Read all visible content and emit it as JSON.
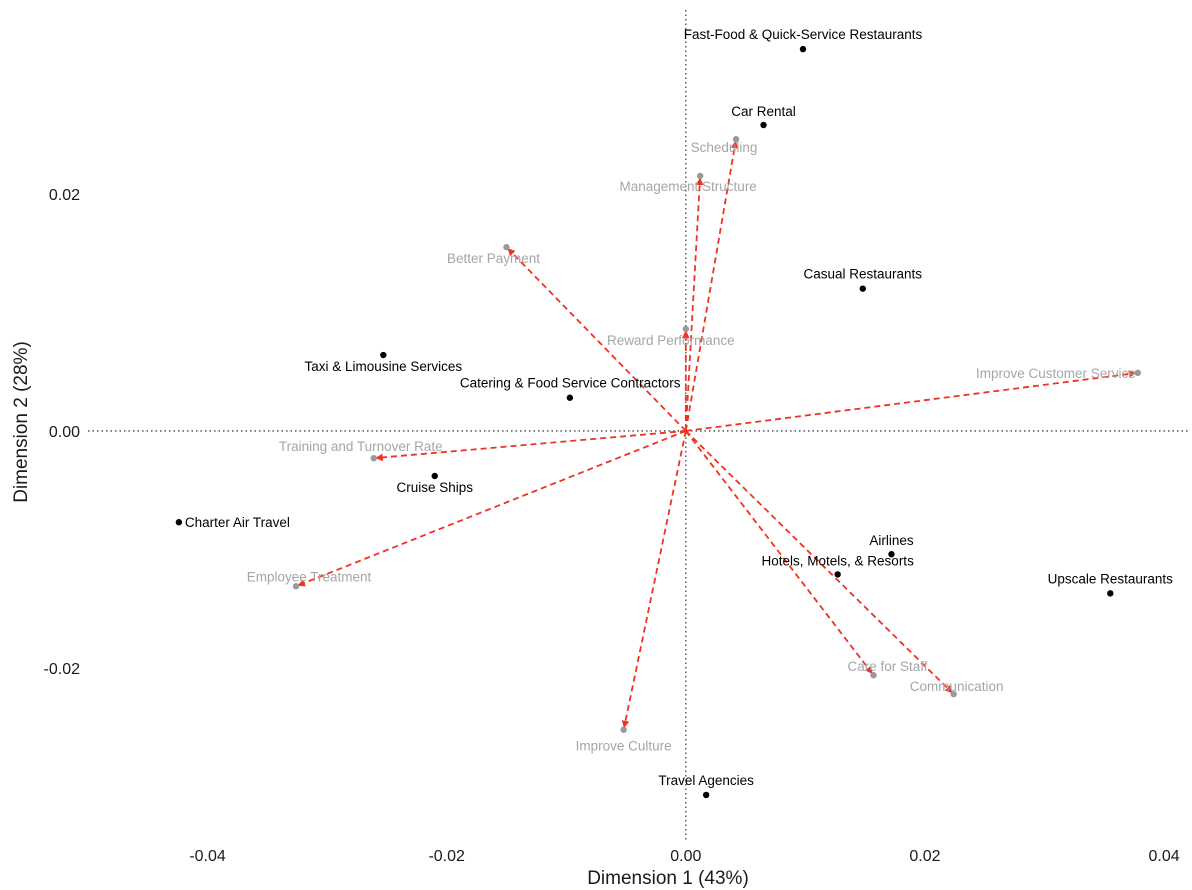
{
  "chart_data": {
    "type": "scatter",
    "xlabel": "Dimension 1 (43%)",
    "ylabel": "Dimension 2 (28%)",
    "xlim": [
      -0.05,
      0.042
    ],
    "ylim": [
      -0.0345,
      0.0355
    ],
    "xticks": [
      {
        "value": -0.04,
        "label": "-0.04"
      },
      {
        "value": -0.02,
        "label": "-0.02"
      },
      {
        "value": 0.0,
        "label": "0.00"
      },
      {
        "value": 0.02,
        "label": "0.02"
      },
      {
        "value": 0.04,
        "label": "0.04"
      }
    ],
    "yticks": [
      {
        "value": -0.02,
        "label": "-0.02"
      },
      {
        "value": 0.0,
        "label": "0.00"
      },
      {
        "value": 0.02,
        "label": "0.02"
      }
    ],
    "grid": false,
    "reference_lines": {
      "x": 0,
      "y": 0,
      "style": "dotted"
    },
    "row_points": [
      {
        "name": "Fast-Food & Quick-Service Restaurants",
        "x": 0.0098,
        "y": 0.0322,
        "anchor": "middle",
        "dy": -10
      },
      {
        "name": "Car Rental",
        "x": 0.0065,
        "y": 0.0258,
        "anchor": "middle",
        "dy": -9
      },
      {
        "name": "Casual Restaurants",
        "x": 0.0148,
        "y": 0.012,
        "anchor": "middle",
        "dy": -10
      },
      {
        "name": "Taxi & Limousine Services",
        "x": -0.0253,
        "y": 0.0064,
        "anchor": "middle",
        "dy": 16
      },
      {
        "name": "Catering & Food Service Contractors",
        "x": -0.0097,
        "y": 0.0028,
        "anchor": "start",
        "dx": -110,
        "dy": -10
      },
      {
        "name": "Cruise Ships",
        "x": -0.021,
        "y": -0.0038,
        "anchor": "middle",
        "dy": 16
      },
      {
        "name": "Charter Air Travel",
        "x": -0.0424,
        "y": -0.0077,
        "anchor": "start",
        "dx": 6,
        "dy": 5
      },
      {
        "name": "Airlines",
        "x": 0.0172,
        "y": -0.0104,
        "anchor": "middle",
        "dy": -9
      },
      {
        "name": "Hotels, Motels, & Resorts",
        "x": 0.0127,
        "y": -0.0121,
        "anchor": "middle",
        "dy": -9
      },
      {
        "name": "Upscale Restaurants",
        "x": 0.0355,
        "y": -0.0137,
        "anchor": "middle",
        "dy": -10
      },
      {
        "name": "Travel Agencies",
        "x": 0.0017,
        "y": -0.0307,
        "anchor": "middle",
        "dy": -10
      }
    ],
    "column_arrows": [
      {
        "name": "Scheduling",
        "x": 0.0042,
        "y": 0.0246,
        "anchor": "middle",
        "dx": -12,
        "dy": 13
      },
      {
        "name": "Management Structure",
        "x": 0.0012,
        "y": 0.0215,
        "anchor": "middle",
        "dx": -12,
        "dy": 15
      },
      {
        "name": "Better Payment",
        "x": -0.015,
        "y": 0.0155,
        "anchor": "middle",
        "dx": -13,
        "dy": 16
      },
      {
        "name": "Reward Performance",
        "x": 0.0,
        "y": 0.0086,
        "anchor": "middle",
        "dx": -15,
        "dy": 16
      },
      {
        "name": "Improve Customer Service",
        "x": 0.0378,
        "y": 0.0049,
        "anchor": "end",
        "dx": -2,
        "dy": 5
      },
      {
        "name": "Training and Turnover Rate",
        "x": -0.0261,
        "y": -0.0023,
        "anchor": "middle",
        "dx": -13,
        "dy": -7
      },
      {
        "name": "Employee Treatment",
        "x": -0.0326,
        "y": -0.0131,
        "anchor": "middle",
        "dx": 13,
        "dy": -5
      },
      {
        "name": "Care for Staff",
        "x": 0.0157,
        "y": -0.0206,
        "anchor": "middle",
        "dx": 14,
        "dy": -4
      },
      {
        "name": "Communication",
        "x": 0.0224,
        "y": -0.0222,
        "anchor": "middle",
        "dx": 3,
        "dy": -3
      },
      {
        "name": "Improve Culture",
        "x": -0.0052,
        "y": -0.0252,
        "anchor": "middle",
        "dx": 0,
        "dy": 21
      }
    ],
    "colors": {
      "row_point": "#000000",
      "row_label": "#000000",
      "column_label": "#a6a6a6",
      "column_point": "#999999",
      "arrow": "#ee3322",
      "reference_line": "#444444"
    }
  }
}
